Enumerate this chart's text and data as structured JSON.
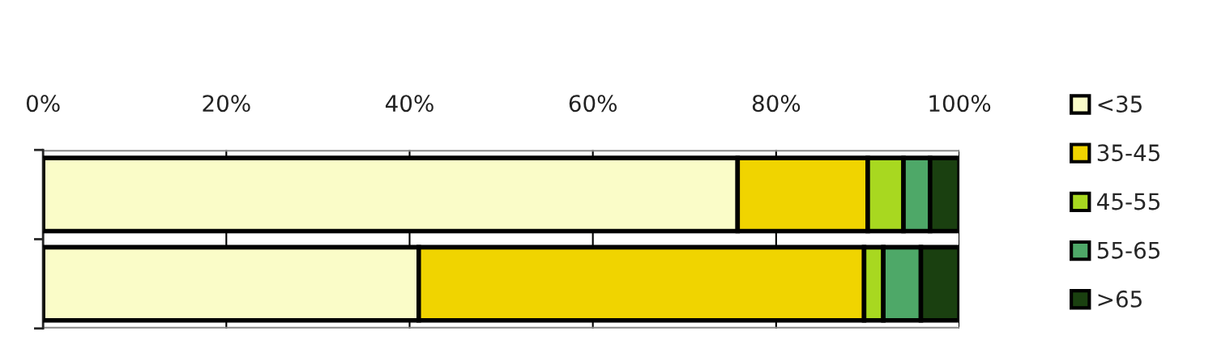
{
  "chart_data": {
    "type": "bar",
    "orientation": "horizontal",
    "stacked": true,
    "categories": [
      null,
      null
    ],
    "series": [
      {
        "name": "<35",
        "color": "#fafcc8",
        "values": [
          75.8,
          41.0
        ]
      },
      {
        "name": "35-45",
        "color": "#f0d400",
        "values": [
          14.2,
          48.6
        ]
      },
      {
        "name": "45-55",
        "color": "#a8d820",
        "values": [
          3.9,
          2.1
        ]
      },
      {
        "name": "55-65",
        "color": "#4ea868",
        "values": [
          2.9,
          4.1
        ]
      },
      {
        "name": ">65",
        "color": "#1a4010",
        "values": [
          3.2,
          4.2
        ]
      }
    ],
    "xlim": [
      0,
      100
    ],
    "xticks": [
      {
        "value": 0,
        "label": "0%"
      },
      {
        "value": 20,
        "label": "20%"
      },
      {
        "value": 40,
        "label": "40%"
      },
      {
        "value": 60,
        "label": "60%"
      },
      {
        "value": 80,
        "label": "80%"
      },
      {
        "value": 100,
        "label": "100%"
      }
    ],
    "grid": "x",
    "legend": "right"
  }
}
